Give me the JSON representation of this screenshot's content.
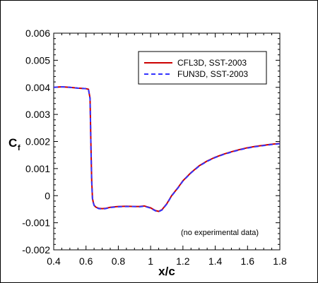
{
  "chart_data": {
    "type": "line",
    "xlabel": "x/c",
    "ylabel": "C",
    "ylabel_subscript": "f",
    "xlim": [
      0.4,
      1.8
    ],
    "ylim": [
      -0.002,
      0.006
    ],
    "x_ticks": [
      "0.4",
      "0.6",
      "0.8",
      "1",
      "1.2",
      "1.4",
      "1.6",
      "1.8"
    ],
    "y_ticks": [
      "-0.002",
      "-0.001",
      "0",
      "0.001",
      "0.002",
      "0.003",
      "0.004",
      "0.005",
      "0.006"
    ],
    "grid": false,
    "legend_position": "top-right",
    "annotation": "(no experimental data)",
    "series": [
      {
        "name": "CFL3D, SST-2003",
        "color": "#cc0000",
        "style": "solid",
        "x": [
          0.4,
          0.45,
          0.5,
          0.55,
          0.6,
          0.615,
          0.625,
          0.63,
          0.635,
          0.64,
          0.645,
          0.65,
          0.66,
          0.68,
          0.7,
          0.72,
          0.75,
          0.78,
          0.8,
          0.85,
          0.9,
          0.93,
          0.96,
          1.0,
          1.03,
          1.05,
          1.07,
          1.1,
          1.13,
          1.17,
          1.2,
          1.25,
          1.3,
          1.35,
          1.4,
          1.45,
          1.5,
          1.55,
          1.6,
          1.65,
          1.7,
          1.75,
          1.8
        ],
        "y": [
          0.004,
          0.00402,
          0.004,
          0.00397,
          0.00395,
          0.00393,
          0.0036,
          0.002,
          0.0006,
          -0.0001,
          -0.00025,
          -0.00035,
          -0.00042,
          -0.00047,
          -0.00048,
          -0.00047,
          -0.00043,
          -0.00041,
          -0.0004,
          -0.00039,
          -0.0004,
          -0.0004,
          -0.00038,
          -0.00045,
          -0.00055,
          -0.00058,
          -0.00052,
          -0.0003,
          0.0,
          0.0003,
          0.00055,
          0.00085,
          0.0011,
          0.00128,
          0.00142,
          0.00153,
          0.00162,
          0.0017,
          0.00177,
          0.00182,
          0.00186,
          0.0019,
          0.00193
        ]
      },
      {
        "name": "FUN3D, SST-2003",
        "color": "#3333ff",
        "style": "dashed",
        "x": [
          0.4,
          0.45,
          0.5,
          0.55,
          0.6,
          0.615,
          0.625,
          0.63,
          0.635,
          0.64,
          0.645,
          0.65,
          0.66,
          0.68,
          0.7,
          0.72,
          0.75,
          0.78,
          0.8,
          0.85,
          0.9,
          0.93,
          0.96,
          1.0,
          1.03,
          1.05,
          1.07,
          1.1,
          1.13,
          1.17,
          1.2,
          1.25,
          1.3,
          1.35,
          1.4,
          1.45,
          1.5,
          1.55,
          1.6,
          1.65,
          1.7,
          1.75,
          1.8
        ],
        "y": [
          0.004,
          0.00402,
          0.004,
          0.00397,
          0.00395,
          0.00393,
          0.00358,
          0.00195,
          0.00055,
          -0.00012,
          -0.00026,
          -0.00036,
          -0.00043,
          -0.00048,
          -0.00049,
          -0.00048,
          -0.00044,
          -0.00042,
          -0.00041,
          -0.0004,
          -0.0004,
          -0.00041,
          -0.00039,
          -0.00046,
          -0.00056,
          -0.00059,
          -0.00053,
          -0.00031,
          -1e-05,
          0.00029,
          0.00054,
          0.00084,
          0.00109,
          0.00127,
          0.00141,
          0.00152,
          0.00161,
          0.00169,
          0.00176,
          0.00181,
          0.00185,
          0.00189,
          0.00192
        ]
      }
    ]
  }
}
